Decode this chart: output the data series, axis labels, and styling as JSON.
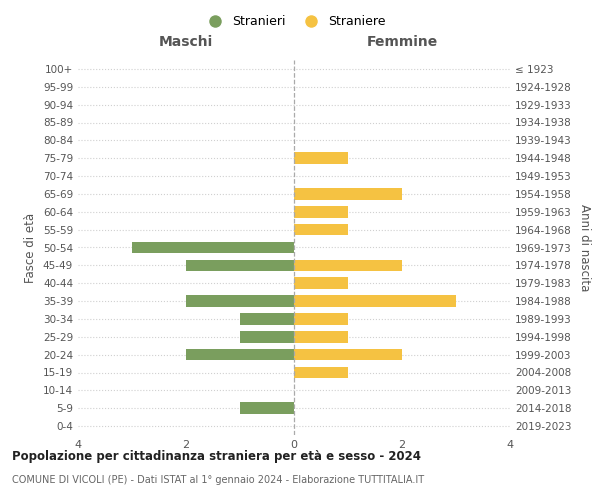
{
  "age_groups": [
    "0-4",
    "5-9",
    "10-14",
    "15-19",
    "20-24",
    "25-29",
    "30-34",
    "35-39",
    "40-44",
    "45-49",
    "50-54",
    "55-59",
    "60-64",
    "65-69",
    "70-74",
    "75-79",
    "80-84",
    "85-89",
    "90-94",
    "95-99",
    "100+"
  ],
  "birth_years": [
    "2019-2023",
    "2014-2018",
    "2009-2013",
    "2004-2008",
    "1999-2003",
    "1994-1998",
    "1989-1993",
    "1984-1988",
    "1979-1983",
    "1974-1978",
    "1969-1973",
    "1964-1968",
    "1959-1963",
    "1954-1958",
    "1949-1953",
    "1944-1948",
    "1939-1943",
    "1934-1938",
    "1929-1933",
    "1924-1928",
    "≤ 1923"
  ],
  "maschi": [
    0,
    1,
    0,
    0,
    2,
    1,
    1,
    2,
    0,
    2,
    3,
    0,
    0,
    0,
    0,
    0,
    0,
    0,
    0,
    0,
    0
  ],
  "femmine": [
    0,
    0,
    0,
    1,
    2,
    1,
    1,
    3,
    1,
    2,
    0,
    1,
    1,
    2,
    0,
    1,
    0,
    0,
    0,
    0,
    0
  ],
  "color_maschi": "#7a9e5e",
  "color_femmine": "#f5c242",
  "title_main": "Popolazione per cittadinanza straniera per età e sesso - 2024",
  "title_sub": "COMUNE DI VICOLI (PE) - Dati ISTAT al 1° gennaio 2024 - Elaborazione TUTTITALIA.IT",
  "legend_maschi": "Stranieri",
  "legend_femmine": "Straniere",
  "label_left": "Maschi",
  "label_right": "Femmine",
  "ylabel_left": "Fasce di età",
  "ylabel_right": "Anni di nascita",
  "xlim": 4,
  "background_color": "#ffffff",
  "grid_color": "#d0d0d0"
}
